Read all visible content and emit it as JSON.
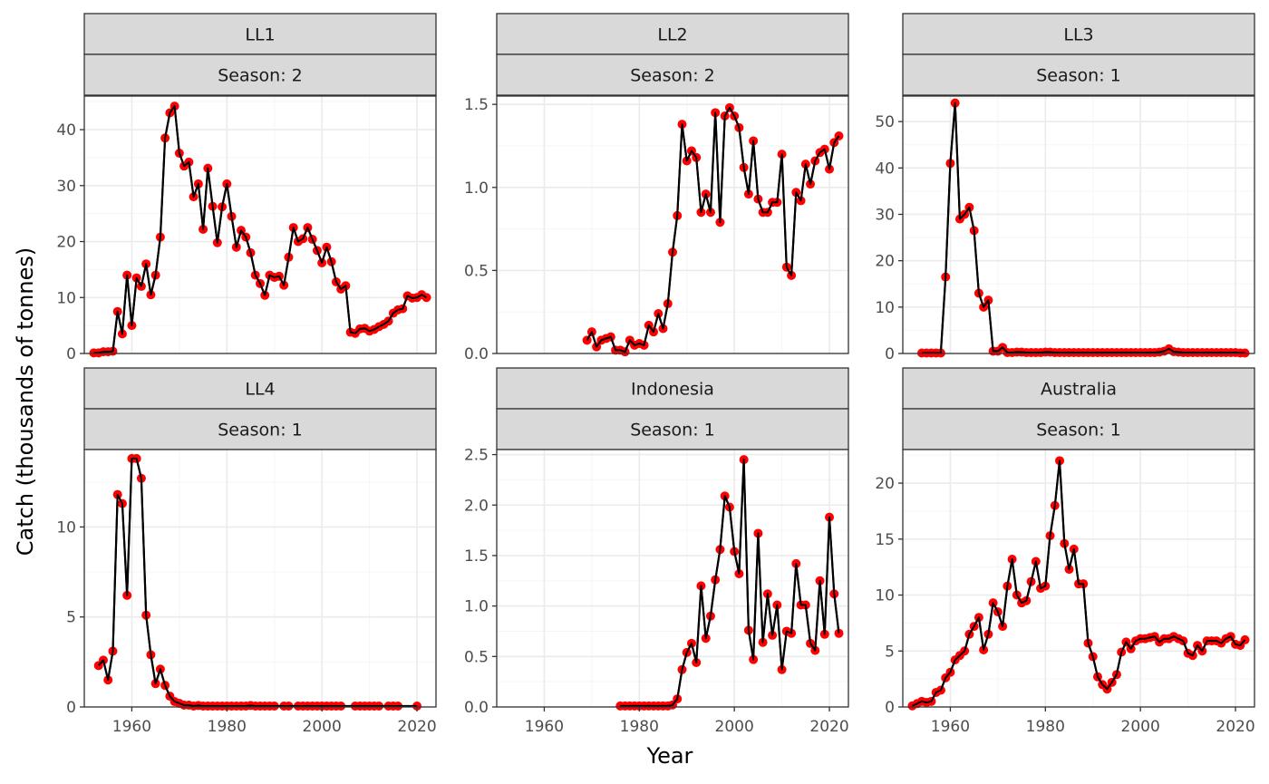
{
  "chart_data": {
    "type": "line",
    "xlabel": "Year",
    "ylabel": "Catch (thousands of tonnes)",
    "xlim": [
      1950,
      2024
    ],
    "x_ticks": [
      1960,
      1980,
      2000,
      2020
    ],
    "grid": true,
    "colors": {
      "points": "#ff0000",
      "line": "#000000",
      "strip_fill": "#d9d9d9",
      "grid_major": "#ebebeb",
      "grid_minor": "#f5f5f5"
    },
    "panels": [
      {
        "fleet": "LL1",
        "season": "Season: 2",
        "ylim": [
          0,
          46
        ],
        "y_ticks": [
          0,
          10,
          20,
          30,
          40
        ],
        "y_tick_labels": [
          "0",
          "10",
          "20",
          "30",
          "40"
        ],
        "x": [
          1952,
          1953,
          1954,
          1955,
          1956,
          1957,
          1958,
          1959,
          1960,
          1961,
          1962,
          1963,
          1964,
          1965,
          1966,
          1967,
          1968,
          1969,
          1970,
          1971,
          1972,
          1973,
          1974,
          1975,
          1976,
          1977,
          1978,
          1979,
          1980,
          1981,
          1982,
          1983,
          1984,
          1985,
          1986,
          1987,
          1988,
          1989,
          1990,
          1991,
          1992,
          1993,
          1994,
          1995,
          1996,
          1997,
          1998,
          1999,
          2000,
          2001,
          2002,
          2003,
          2004,
          2005,
          2006,
          2007,
          2008,
          2009,
          2010,
          2011,
          2012,
          2013,
          2014,
          2015,
          2016,
          2017,
          2018,
          2019,
          2020,
          2021,
          2022
        ],
        "y": [
          0.1,
          0.1,
          0.3,
          0.3,
          0.4,
          7.5,
          3.5,
          14,
          5,
          13.5,
          12,
          16,
          10.5,
          14,
          20.8,
          38.5,
          43,
          44.2,
          35.8,
          33.5,
          34.2,
          28,
          30.3,
          22.2,
          33.1,
          26.3,
          19.8,
          26.2,
          30.3,
          24.5,
          19,
          22,
          20.8,
          18,
          14,
          12.5,
          10.4,
          14,
          13.6,
          13.8,
          12.2,
          17.2,
          22.5,
          20,
          20.5,
          22.5,
          20.4,
          18.4,
          16.2,
          19,
          16.4,
          12.8,
          11.5,
          12.1,
          3.8,
          3.6,
          4.4,
          4.5,
          4,
          4.3,
          4.8,
          5.2,
          5.8,
          7.2,
          7.8,
          8,
          10.3,
          9.9,
          10,
          10.5,
          10
        ]
      },
      {
        "fleet": "LL2",
        "season": "Season: 2",
        "ylim": [
          0,
          1.55
        ],
        "y_ticks": [
          0,
          0.5,
          1.0,
          1.5
        ],
        "y_tick_labels": [
          "0.0",
          "0.5",
          "1.0",
          "1.5"
        ],
        "x": [
          1969,
          1970,
          1971,
          1972,
          1973,
          1974,
          1975,
          1976,
          1977,
          1978,
          1979,
          1980,
          1981,
          1982,
          1983,
          1984,
          1985,
          1986,
          1987,
          1988,
          1989,
          1990,
          1991,
          1992,
          1993,
          1994,
          1995,
          1996,
          1997,
          1998,
          1999,
          2000,
          2001,
          2002,
          2003,
          2004,
          2005,
          2006,
          2007,
          2008,
          2009,
          2010,
          2011,
          2012,
          2013,
          2014,
          2015,
          2016,
          2017,
          2018,
          2019,
          2020,
          2021,
          2022
        ],
        "y": [
          0.08,
          0.13,
          0.04,
          0.08,
          0.09,
          0.1,
          0.02,
          0.02,
          0.01,
          0.08,
          0.05,
          0.06,
          0.05,
          0.17,
          0.13,
          0.24,
          0.15,
          0.3,
          0.61,
          0.83,
          1.38,
          1.16,
          1.22,
          1.18,
          0.85,
          0.96,
          0.85,
          1.45,
          0.79,
          1.43,
          1.48,
          1.43,
          1.36,
          1.12,
          0.96,
          1.28,
          0.93,
          0.85,
          0.85,
          0.91,
          0.91,
          1.2,
          0.52,
          0.47,
          0.97,
          0.92,
          1.14,
          1.02,
          1.16,
          1.21,
          1.23,
          1.11,
          1.27,
          1.31
        ]
      },
      {
        "fleet": "LL3",
        "season": "Season: 1",
        "ylim": [
          0,
          55.5
        ],
        "y_ticks": [
          0,
          10,
          20,
          30,
          40,
          50
        ],
        "y_tick_labels": [
          "0",
          "10",
          "20",
          "30",
          "40",
          "50"
        ],
        "x": [
          1954,
          1955,
          1956,
          1957,
          1958,
          1959,
          1960,
          1961,
          1962,
          1963,
          1964,
          1965,
          1966,
          1967,
          1968,
          1969,
          1970,
          1971,
          1972,
          1973,
          1974,
          1975,
          1976,
          1977,
          1978,
          1979,
          1980,
          1981,
          1982,
          1983,
          1984,
          1985,
          1986,
          1987,
          1988,
          1989,
          1990,
          1991,
          1992,
          1993,
          1994,
          1995,
          1996,
          1997,
          1998,
          1999,
          2000,
          2001,
          2002,
          2003,
          2004,
          2005,
          2006,
          2007,
          2008,
          2009,
          2010,
          2011,
          2012,
          2013,
          2014,
          2015,
          2016,
          2017,
          2018,
          2019,
          2020,
          2021,
          2022
        ],
        "y": [
          0.1,
          0.1,
          0.1,
          0.1,
          0.1,
          16.5,
          41,
          54,
          29,
          30,
          31.5,
          26.5,
          13,
          10,
          11.5,
          0.5,
          0.5,
          1.3,
          0.2,
          0.2,
          0.3,
          0.3,
          0.2,
          0.2,
          0.2,
          0.2,
          0.3,
          0.3,
          0.2,
          0.2,
          0.2,
          0.2,
          0.2,
          0.2,
          0.2,
          0.2,
          0.2,
          0.2,
          0.2,
          0.2,
          0.2,
          0.2,
          0.2,
          0.2,
          0.2,
          0.2,
          0.2,
          0.2,
          0.2,
          0.2,
          0.3,
          0.5,
          1,
          0.4,
          0.3,
          0.2,
          0.2,
          0.2,
          0.2,
          0.2,
          0.2,
          0.2,
          0.2,
          0.2,
          0.2,
          0.2,
          0.2,
          0.1,
          0.1
        ]
      },
      {
        "fleet": "LL4",
        "season": "Season: 1",
        "ylim": [
          0,
          14.3
        ],
        "y_ticks": [
          0,
          5,
          10
        ],
        "y_tick_labels": [
          "0",
          "5",
          "10"
        ],
        "x": [
          1953,
          1954,
          1955,
          1956,
          1957,
          1958,
          1959,
          1960,
          1961,
          1962,
          1963,
          1964,
          1965,
          1966,
          1967,
          1968,
          1969,
          1970,
          1971,
          1972,
          1973,
          1974,
          1975,
          1976,
          1977,
          1978,
          1979,
          1980,
          1981,
          1982,
          1983,
          1984,
          1985,
          1986,
          1987,
          1988,
          1989,
          1990,
          1992,
          1993,
          1995,
          1996,
          1997,
          1998,
          1999,
          2000,
          2001,
          2002,
          2003,
          2004,
          2007,
          2008,
          2009,
          2010,
          2011,
          2012,
          2014,
          2015,
          2016,
          2020
        ],
        "y": [
          2.3,
          2.6,
          1.5,
          3.1,
          11.8,
          11.3,
          6.2,
          13.8,
          13.8,
          12.7,
          5.1,
          2.9,
          1.3,
          2.1,
          1.2,
          0.6,
          0.3,
          0.2,
          0.1,
          0.1,
          0.05,
          0.08,
          0.05,
          0.05,
          0.05,
          0.05,
          0.05,
          0.05,
          0.05,
          0.05,
          0.05,
          0.05,
          0.08,
          0.05,
          0.05,
          0.05,
          0.05,
          0.05,
          0.05,
          0.05,
          0.05,
          0.05,
          0.05,
          0.05,
          0.05,
          0.05,
          0.05,
          0.05,
          0.05,
          0.05,
          0.05,
          0.05,
          0.05,
          0.05,
          0.05,
          0.05,
          0.05,
          0.05,
          0.05,
          0.05
        ]
      },
      {
        "fleet": "Indonesia",
        "season": "Season: 1",
        "ylim": [
          0,
          2.55
        ],
        "y_ticks": [
          0,
          0.5,
          1.0,
          1.5,
          2.0,
          2.5
        ],
        "y_tick_labels": [
          "0.0",
          "0.5",
          "1.0",
          "1.5",
          "2.0",
          "2.5"
        ],
        "x": [
          1976,
          1977,
          1978,
          1979,
          1980,
          1981,
          1982,
          1983,
          1984,
          1985,
          1986,
          1987,
          1988,
          1989,
          1990,
          1991,
          1992,
          1993,
          1994,
          1995,
          1996,
          1997,
          1998,
          1999,
          2000,
          2001,
          2002,
          2003,
          2004,
          2005,
          2006,
          2007,
          2008,
          2009,
          2010,
          2011,
          2012,
          2013,
          2014,
          2015,
          2016,
          2017,
          2018,
          2019,
          2020,
          2021,
          2022
        ],
        "y": [
          0.01,
          0.01,
          0.01,
          0.01,
          0.01,
          0.01,
          0.01,
          0.01,
          0.01,
          0.01,
          0.01,
          0.02,
          0.08,
          0.37,
          0.54,
          0.63,
          0.44,
          1.2,
          0.68,
          0.9,
          1.26,
          1.56,
          2.09,
          1.98,
          1.54,
          1.32,
          2.45,
          0.76,
          0.47,
          1.72,
          0.64,
          1.12,
          0.71,
          1.01,
          0.37,
          0.75,
          0.73,
          1.42,
          1.01,
          1.01,
          0.63,
          0.56,
          1.25,
          0.72,
          1.88,
          1.12,
          0.73
        ]
      },
      {
        "fleet": "Australia",
        "season": "Season: 1",
        "ylim": [
          0,
          23
        ],
        "y_ticks": [
          0,
          5,
          10,
          15,
          20
        ],
        "y_tick_labels": [
          "0",
          "5",
          "10",
          "15",
          "20"
        ],
        "x": [
          1952,
          1953,
          1954,
          1955,
          1956,
          1957,
          1958,
          1959,
          1960,
          1961,
          1962,
          1963,
          1964,
          1965,
          1966,
          1967,
          1968,
          1969,
          1970,
          1971,
          1972,
          1973,
          1974,
          1975,
          1976,
          1977,
          1978,
          1979,
          1980,
          1981,
          1982,
          1983,
          1984,
          1985,
          1986,
          1987,
          1988,
          1989,
          1990,
          1991,
          1992,
          1993,
          1994,
          1995,
          1996,
          1997,
          1998,
          1999,
          2000,
          2001,
          2002,
          2003,
          2004,
          2005,
          2006,
          2007,
          2008,
          2009,
          2010,
          2011,
          2012,
          2013,
          2014,
          2015,
          2016,
          2017,
          2018,
          2019,
          2020,
          2021,
          2022
        ],
        "y": [
          0.1,
          0.3,
          0.5,
          0.4,
          0.5,
          1.3,
          1.5,
          2.6,
          3.1,
          4.2,
          4.6,
          5,
          6.5,
          7.2,
          8,
          5.1,
          6.5,
          9.3,
          8.5,
          7.2,
          10.8,
          13.2,
          10,
          9.3,
          9.5,
          11.2,
          13,
          10.6,
          10.8,
          15.3,
          18,
          22,
          14.6,
          12.3,
          14.1,
          11,
          11,
          5.7,
          4.5,
          2.7,
          2,
          1.6,
          2.2,
          2.9,
          4.9,
          5.8,
          5.2,
          5.9,
          6.1,
          6.1,
          6.2,
          6.3,
          5.8,
          6.1,
          6.1,
          6.3,
          6.1,
          5.9,
          4.8,
          4.6,
          5.5,
          5,
          5.9,
          5.9,
          5.9,
          5.7,
          6.1,
          6.3,
          5.6,
          5.5,
          6
        ]
      }
    ]
  }
}
